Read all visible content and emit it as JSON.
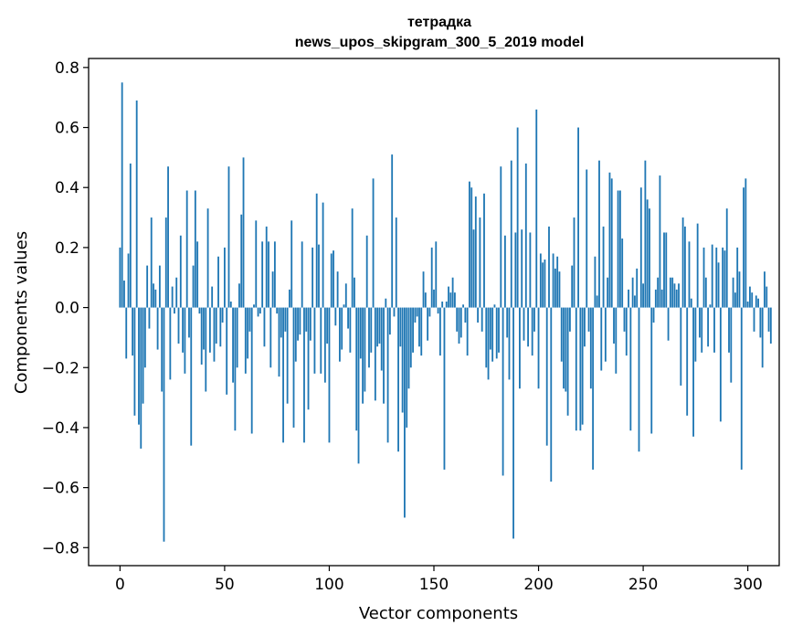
{
  "chart_data": {
    "type": "bar",
    "title": "тетрадка",
    "subtitle": "news_upos_skipgram_300_5_2019 model",
    "xlabel": "Vector components",
    "ylabel": "Components values",
    "xlim": [
      -15,
      315
    ],
    "ylim": [
      -0.86,
      0.83
    ],
    "xticks": [
      0,
      50,
      100,
      150,
      200,
      250,
      300
    ],
    "yticks": [
      -0.8,
      -0.6,
      -0.4,
      -0.2,
      0.0,
      0.2,
      0.4,
      0.6,
      0.8
    ],
    "xtick_labels": [
      "0",
      "50",
      "100",
      "150",
      "200",
      "250",
      "300"
    ],
    "ytick_labels": [
      "−0.8",
      "−0.6",
      "−0.4",
      "−0.2",
      "0.0",
      "0.2",
      "0.4",
      "0.6",
      "0.8"
    ],
    "bar_color": "#1f77b4",
    "values": [
      0.2,
      0.75,
      0.09,
      -0.17,
      0.18,
      0.48,
      -0.16,
      -0.36,
      0.69,
      -0.39,
      -0.47,
      -0.32,
      -0.2,
      0.14,
      -0.07,
      0.3,
      0.08,
      0.06,
      -0.14,
      0.14,
      -0.28,
      -0.78,
      0.3,
      0.47,
      -0.24,
      0.07,
      -0.02,
      0.1,
      -0.12,
      0.24,
      -0.15,
      -0.22,
      0.39,
      -0.1,
      -0.46,
      0.14,
      0.39,
      0.22,
      -0.02,
      -0.19,
      -0.14,
      -0.28,
      0.33,
      -0.15,
      0.07,
      -0.18,
      -0.12,
      0.17,
      -0.13,
      -0.05,
      0.2,
      -0.29,
      0.47,
      0.02,
      -0.25,
      -0.41,
      -0.2,
      0.08,
      0.31,
      0.5,
      -0.22,
      -0.17,
      -0.08,
      -0.42,
      0.01,
      0.29,
      -0.03,
      -0.02,
      0.22,
      -0.13,
      0.27,
      0.22,
      -0.2,
      0.12,
      0.22,
      -0.02,
      -0.23,
      -0.1,
      -0.45,
      -0.08,
      -0.32,
      0.06,
      0.29,
      -0.4,
      -0.18,
      -0.11,
      -0.09,
      0.22,
      -0.45,
      -0.08,
      -0.34,
      -0.11,
      0.2,
      -0.22,
      0.38,
      0.21,
      -0.22,
      0.35,
      -0.25,
      -0.12,
      -0.45,
      0.18,
      0.19,
      -0.06,
      0.12,
      -0.18,
      -0.14,
      0.01,
      0.08,
      -0.07,
      -0.15,
      0.33,
      0.1,
      -0.41,
      -0.52,
      -0.17,
      -0.32,
      -0.28,
      0.24,
      -0.2,
      -0.15,
      0.43,
      -0.31,
      -0.13,
      -0.12,
      -0.21,
      -0.32,
      0.03,
      -0.45,
      -0.09,
      0.51,
      -0.03,
      0.3,
      -0.48,
      -0.13,
      -0.35,
      -0.7,
      -0.4,
      -0.27,
      -0.2,
      -0.15,
      -0.05,
      -0.03,
      -0.13,
      -0.16,
      0.12,
      0.05,
      -0.11,
      -0.03,
      0.2,
      0.06,
      0.22,
      -0.02,
      -0.16,
      0.02,
      -0.54,
      0.02,
      0.07,
      0.05,
      0.1,
      0.05,
      -0.08,
      -0.12,
      -0.1,
      0.01,
      -0.05,
      -0.16,
      0.42,
      0.4,
      0.26,
      0.37,
      -0.05,
      0.3,
      -0.08,
      0.38,
      -0.2,
      -0.24,
      -0.14,
      -0.18,
      0.01,
      -0.17,
      -0.15,
      0.47,
      -0.56,
      0.24,
      -0.1,
      -0.24,
      0.49,
      -0.77,
      0.25,
      0.6,
      -0.27,
      0.26,
      -0.11,
      0.48,
      -0.13,
      0.25,
      -0.16,
      -0.08,
      0.66,
      -0.27,
      0.18,
      0.15,
      0.16,
      -0.46,
      0.27,
      -0.58,
      0.18,
      0.13,
      0.17,
      0.12,
      -0.18,
      -0.27,
      -0.28,
      -0.36,
      -0.08,
      0.14,
      0.3,
      -0.41,
      0.6,
      -0.41,
      -0.39,
      -0.13,
      0.46,
      -0.08,
      -0.27,
      -0.54,
      0.17,
      0.04,
      0.49,
      -0.21,
      0.27,
      -0.18,
      0.1,
      0.45,
      0.43,
      -0.12,
      -0.22,
      0.39,
      0.39,
      0.23,
      -0.08,
      -0.16,
      0.06,
      -0.41,
      0.1,
      0.04,
      0.13,
      -0.48,
      0.4,
      0.08,
      0.49,
      0.36,
      0.33,
      -0.42,
      -0.05,
      0.06,
      0.1,
      0.44,
      0.06,
      0.25,
      0.25,
      -0.11,
      0.1,
      0.1,
      0.08,
      0.06,
      0.08,
      -0.26,
      0.3,
      0.27,
      -0.36,
      0.22,
      0.03,
      -0.43,
      -0.18,
      0.28,
      -0.1,
      -0.15,
      0.2,
      0.1,
      -0.13,
      0.01,
      0.21,
      -0.15,
      0.2,
      0.15,
      -0.38,
      0.2,
      0.19,
      0.33,
      -0.15,
      -0.25,
      0.1,
      0.05,
      0.2,
      0.12,
      -0.54,
      0.4,
      0.43,
      0.02,
      0.07,
      0.05,
      -0.08,
      0.04,
      0.03,
      -0.1,
      -0.2,
      0.12,
      0.07,
      -0.08,
      -0.12
    ]
  }
}
